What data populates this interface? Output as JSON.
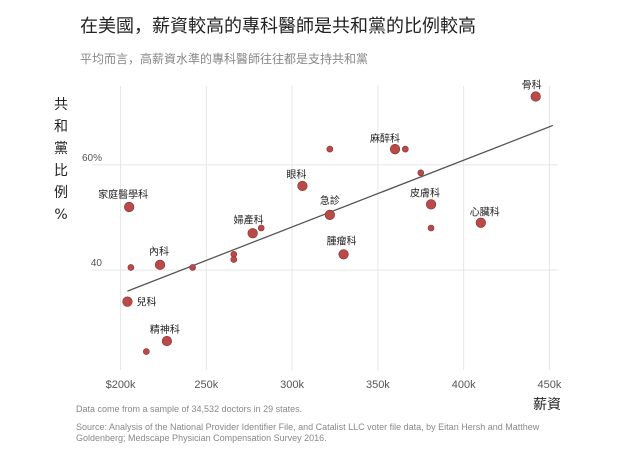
{
  "title": "在美國，薪資較高的專科醫師是共和黨的比例較高",
  "subtitle": "平均而言，高薪資水準的專科醫師往往都是支持共和黨",
  "footnote": "Data come from a sample of 34,532 doctors in 29 states.",
  "source": "Source:  Analysis of the National Provider Identifier File, and Catalist LLC voter file data, by Eitan Hersh and Matthew Goldenberg; Medscape Physician Compensation Survey 2016.",
  "chart_data": {
    "type": "scatter",
    "xlabel": "薪資",
    "ylabel": "共和黨比例%",
    "ylabel_chars": [
      "共",
      "和",
      "黨",
      "比",
      "例",
      "%"
    ],
    "xlim": [
      195000,
      455000
    ],
    "ylim": [
      21,
      75
    ],
    "x_ticks": [
      {
        "value": 200000,
        "label": "$200k"
      },
      {
        "value": 250000,
        "label": "250k"
      },
      {
        "value": 300000,
        "label": "300k"
      },
      {
        "value": 350000,
        "label": "350k"
      },
      {
        "value": 400000,
        "label": "400k"
      },
      {
        "value": 450000,
        "label": "450k"
      }
    ],
    "y_ticks": [
      {
        "value": 40,
        "label": "40"
      },
      {
        "value": 60,
        "label": "60%"
      }
    ],
    "grid": true,
    "trendline": {
      "x": [
        204000,
        452000
      ],
      "y": [
        36,
        67.5
      ]
    },
    "points": [
      {
        "x": 442000,
        "y": 73,
        "label": "骨科",
        "size": "large"
      },
      {
        "x": 360000,
        "y": 63,
        "label": "麻醉科",
        "size": "large"
      },
      {
        "x": 306000,
        "y": 56,
        "label": "眼科",
        "size": "large"
      },
      {
        "x": 205000,
        "y": 52,
        "label": "家庭醫學科",
        "size": "large"
      },
      {
        "x": 322000,
        "y": 50.5,
        "label": "急診",
        "size": "large"
      },
      {
        "x": 381000,
        "y": 52.5,
        "label": "皮膚科",
        "size": "large"
      },
      {
        "x": 410000,
        "y": 49,
        "label": "心臟科",
        "size": "large"
      },
      {
        "x": 277000,
        "y": 47,
        "label": "婦產科",
        "size": "large"
      },
      {
        "x": 330000,
        "y": 43,
        "label": "腫瘤科",
        "size": "large"
      },
      {
        "x": 223000,
        "y": 41,
        "label": "內科",
        "size": "large"
      },
      {
        "x": 204000,
        "y": 34,
        "label": "兒科",
        "size": "large"
      },
      {
        "x": 227000,
        "y": 26.5,
        "label": "精神科",
        "size": "large"
      },
      {
        "x": 322000,
        "y": 63,
        "label": "",
        "size": "small"
      },
      {
        "x": 366000,
        "y": 63,
        "label": "",
        "size": "small"
      },
      {
        "x": 375000,
        "y": 58.5,
        "label": "",
        "size": "small"
      },
      {
        "x": 381000,
        "y": 48,
        "label": "",
        "size": "small"
      },
      {
        "x": 282000,
        "y": 48,
        "label": "",
        "size": "small"
      },
      {
        "x": 266000,
        "y": 43,
        "label": "",
        "size": "small"
      },
      {
        "x": 266000,
        "y": 42,
        "label": "",
        "size": "small"
      },
      {
        "x": 242000,
        "y": 40.5,
        "label": "",
        "size": "small"
      },
      {
        "x": 206000,
        "y": 40.5,
        "label": "",
        "size": "small"
      },
      {
        "x": 215000,
        "y": 24.5,
        "label": "",
        "size": "small"
      }
    ]
  }
}
